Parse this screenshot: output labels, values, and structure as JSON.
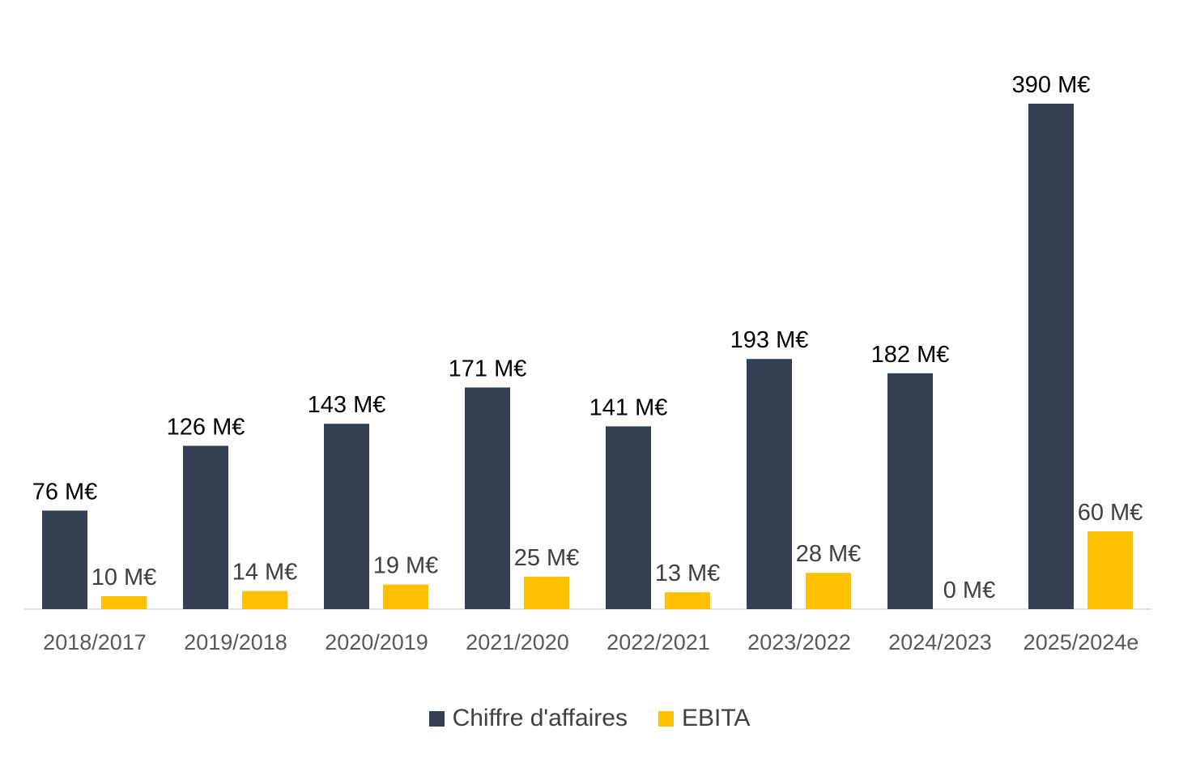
{
  "chart_data": {
    "type": "bar",
    "title": "",
    "xlabel": "",
    "ylabel": "",
    "ylim": [
      0,
      390
    ],
    "grid": false,
    "legend_position": "bottom",
    "value_suffix": " M€",
    "categories": [
      "2018/2017",
      "2019/2018",
      "2020/2019",
      "2021/2020",
      "2022/2021",
      "2023/2022",
      "2024/2023",
      "2025/2024e"
    ],
    "series": [
      {
        "name": "Chiffre d'affaires",
        "color": "#333F50",
        "label_color": "#000000",
        "values": [
          76,
          126,
          143,
          171,
          141,
          193,
          182,
          390
        ]
      },
      {
        "name": "EBITA",
        "color": "#FFC000",
        "label_color": "#404040",
        "values": [
          10,
          14,
          19,
          25,
          13,
          28,
          0,
          60
        ]
      }
    ]
  },
  "legend": {
    "items": [
      {
        "label": "Chiffre d'affaires",
        "color": "#333F50"
      },
      {
        "label": "EBITA",
        "color": "#FFC000"
      }
    ]
  },
  "colors": {
    "axis_line": "#D9D9D9",
    "tick_label": "#595959"
  }
}
